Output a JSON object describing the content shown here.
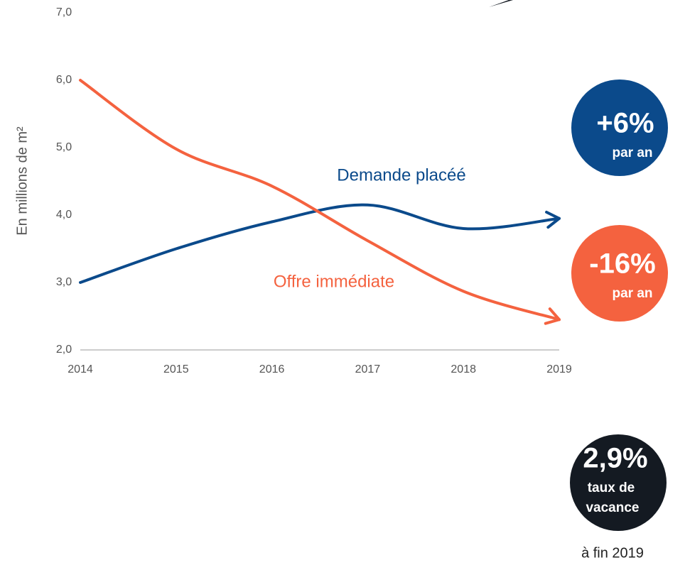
{
  "chart_data": {
    "type": "line",
    "y_label": "En millions de m²",
    "x": [
      2014,
      2015,
      2016,
      2017,
      2018,
      2019
    ],
    "xlim": [
      2014,
      2019
    ],
    "xticks": [
      2014,
      2015,
      2016,
      2017,
      2018,
      2019
    ],
    "ylim": [
      2,
      7
    ],
    "yticks": [
      {
        "value": 2,
        "label": "2,0"
      },
      {
        "value": 3,
        "label": "3,0"
      },
      {
        "value": 4,
        "label": "4,0"
      },
      {
        "value": 5,
        "label": "5,0"
      },
      {
        "value": 6,
        "label": "6,0"
      },
      {
        "value": 7,
        "label": "7,0"
      }
    ],
    "series": [
      {
        "name": "Demande placéé",
        "color": "#0b4a8b",
        "values": [
          3.0,
          3.5,
          3.9,
          4.15,
          3.8,
          3.95
        ]
      },
      {
        "name": "Offre immédiate",
        "color": "#f4623f",
        "values": [
          6.0,
          4.98,
          4.43,
          3.62,
          2.87,
          2.45
        ]
      }
    ],
    "annotations": [
      "+6%",
      "par an",
      "-16%",
      "par an",
      "2,9%",
      "taux de",
      "vacance",
      "à fin 2019"
    ]
  }
}
